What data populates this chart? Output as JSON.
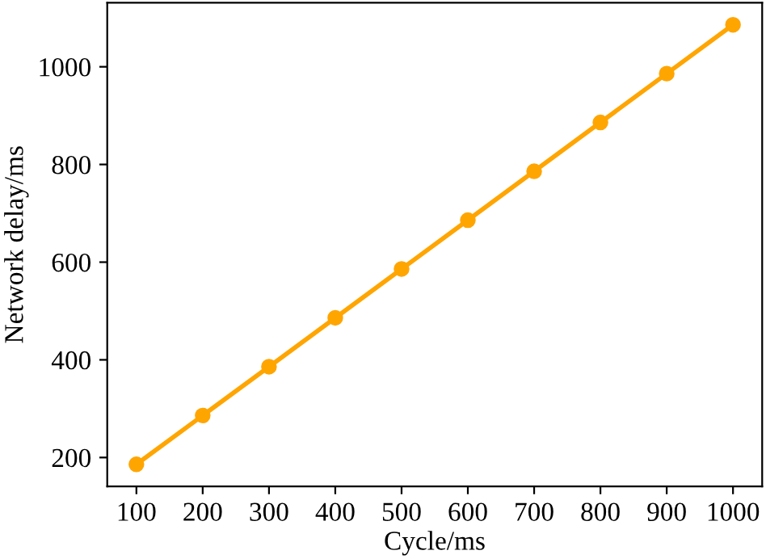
{
  "chart_data": {
    "type": "line",
    "xlabel": "Cycle/ms",
    "ylabel": "Network delay/ms",
    "x": [
      100,
      200,
      300,
      400,
      500,
      600,
      700,
      800,
      900,
      1000
    ],
    "series": [
      {
        "color": "#ffa500",
        "values": [
          186,
          286,
          386,
          486,
          586,
          686,
          786,
          886,
          986,
          1086
        ]
      }
    ],
    "xlim": [
      56,
      1044
    ],
    "ylim": [
      141,
      1131
    ],
    "xticks": [
      100,
      200,
      300,
      400,
      500,
      600,
      700,
      800,
      900,
      1000
    ],
    "yticks": [
      200,
      400,
      600,
      800,
      1000
    ],
    "marker": "circle",
    "line_style": "solid",
    "grid": false,
    "legend": false
  }
}
